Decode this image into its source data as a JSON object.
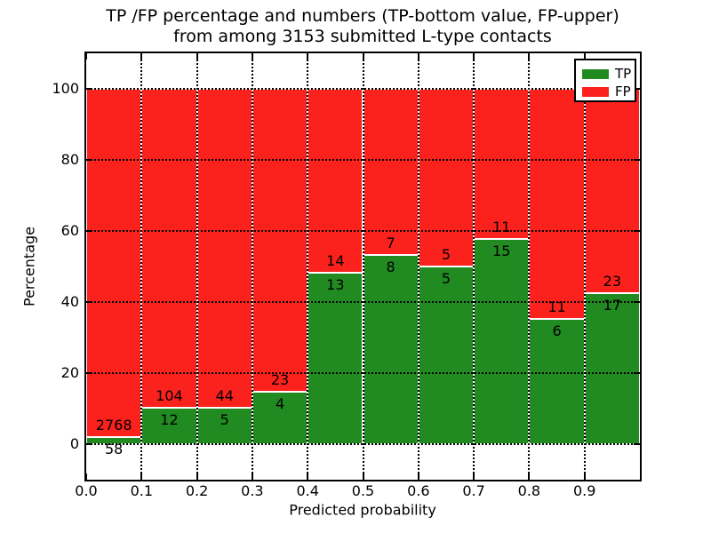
{
  "chart_data": {
    "type": "bar",
    "stacked": true,
    "normalized": "percent",
    "title_line1": "TP /FP percentage and numbers (TP-bottom value, FP-upper)",
    "title_line2": "from among 3153 submitted L-type contacts",
    "xlabel": "Predicted probability",
    "ylabel": "Percentage",
    "total_contacts": 3153,
    "x": [
      0.0,
      0.1,
      0.2,
      0.3,
      0.4,
      0.5,
      0.6,
      0.7,
      0.8,
      0.9
    ],
    "bin_width": 0.1,
    "series": [
      {
        "name": "TP",
        "color": "#218A21",
        "position": "bottom",
        "counts": [
          58,
          12,
          5,
          4,
          13,
          8,
          5,
          15,
          6,
          17
        ]
      },
      {
        "name": "FP",
        "color": "#FB211C",
        "position": "top",
        "counts": [
          2768,
          104,
          44,
          23,
          14,
          7,
          5,
          11,
          11,
          23
        ]
      }
    ],
    "tp_percent": [
      2.05,
      10.34,
      10.2,
      14.81,
      48.15,
      53.33,
      50.0,
      57.69,
      35.29,
      42.5
    ],
    "xlim": [
      0.0,
      1.0
    ],
    "ylim": [
      -10,
      110
    ],
    "xticks": [
      0.0,
      0.1,
      0.2,
      0.3,
      0.4,
      0.5,
      0.6,
      0.7,
      0.8,
      0.9
    ],
    "xtick_labels": [
      "0.0",
      "0.1",
      "0.2",
      "0.3",
      "0.4",
      "0.5",
      "0.6",
      "0.7",
      "0.8",
      "0.9"
    ],
    "yticks": [
      0,
      20,
      40,
      60,
      80,
      100
    ],
    "ytick_labels": [
      "0",
      "20",
      "40",
      "60",
      "80",
      "100"
    ],
    "grid": "dotted",
    "grid_color": "#000000",
    "legend_position": "upper right",
    "legend_entries": [
      "TP",
      "FP"
    ]
  }
}
